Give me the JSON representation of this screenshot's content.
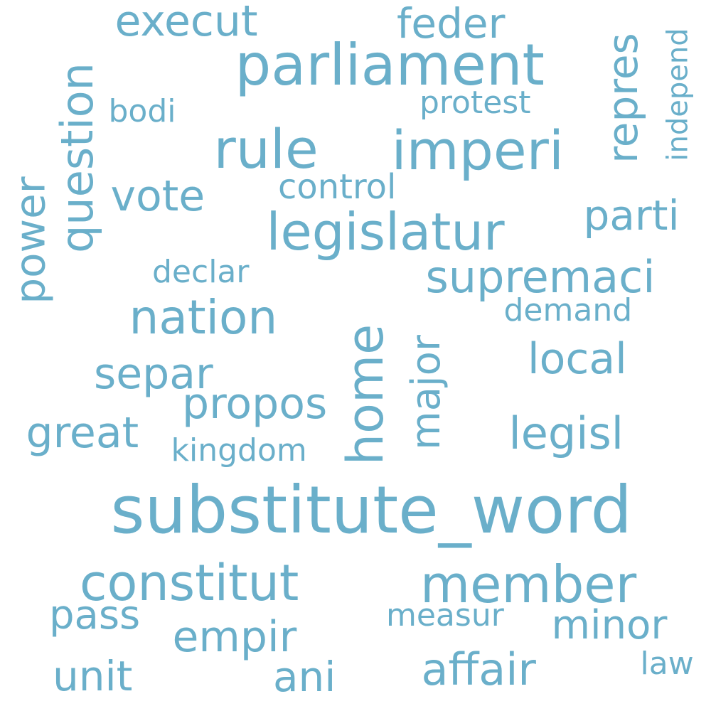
{
  "color": "#6aafca",
  "words": [
    {
      "id": "substitute_word",
      "text": "substitute_word",
      "rotated": false
    },
    {
      "id": "parliament",
      "text": "parliament",
      "rotated": false
    },
    {
      "id": "rule",
      "text": "rule",
      "rotated": false
    },
    {
      "id": "imperi",
      "text": "imperi",
      "rotated": false
    },
    {
      "id": "legislatur",
      "text": "legislatur",
      "rotated": false
    },
    {
      "id": "member",
      "text": "member",
      "rotated": false
    },
    {
      "id": "constitut",
      "text": "constitut",
      "rotated": false
    },
    {
      "id": "home",
      "text": "home",
      "rotated": true
    },
    {
      "id": "nation",
      "text": "nation",
      "rotated": false
    },
    {
      "id": "supremaci",
      "text": "supremaci",
      "rotated": false
    },
    {
      "id": "legisl",
      "text": "legisl",
      "rotated": false
    },
    {
      "id": "affair",
      "text": "affair",
      "rotated": false
    },
    {
      "id": "question",
      "text": "question",
      "rotated": true
    },
    {
      "id": "vote",
      "text": "vote",
      "rotated": false
    },
    {
      "id": "separ",
      "text": "separ",
      "rotated": false
    },
    {
      "id": "propos",
      "text": "propos",
      "rotated": false
    },
    {
      "id": "great",
      "text": "great",
      "rotated": false
    },
    {
      "id": "local",
      "text": "local",
      "rotated": false
    },
    {
      "id": "execut",
      "text": "execut",
      "rotated": false
    },
    {
      "id": "feder",
      "text": "feder",
      "rotated": false
    },
    {
      "id": "repres",
      "text": "repres",
      "rotated": true
    },
    {
      "id": "parti",
      "text": "parti",
      "rotated": false
    },
    {
      "id": "power",
      "text": "power",
      "rotated": true
    },
    {
      "id": "major",
      "text": "major",
      "rotated": true
    },
    {
      "id": "pass",
      "text": "pass",
      "rotated": false
    },
    {
      "id": "empir",
      "text": "empir",
      "rotated": false
    },
    {
      "id": "unit",
      "text": "unit",
      "rotated": false
    },
    {
      "id": "ani",
      "text": "ani",
      "rotated": false
    },
    {
      "id": "minor",
      "text": "minor",
      "rotated": false
    },
    {
      "id": "control",
      "text": "control",
      "rotated": false
    },
    {
      "id": "declar",
      "text": "declar",
      "rotated": false
    },
    {
      "id": "demand",
      "text": "demand",
      "rotated": false
    },
    {
      "id": "kingdom",
      "text": "kingdom",
      "rotated": false
    },
    {
      "id": "measur",
      "text": "measur",
      "rotated": false
    },
    {
      "id": "protest",
      "text": "protest",
      "rotated": false
    },
    {
      "id": "bodi",
      "text": "bodi",
      "rotated": false
    },
    {
      "id": "independ",
      "text": "independ",
      "rotated": true
    },
    {
      "id": "law",
      "text": "law",
      "rotated": false
    }
  ]
}
